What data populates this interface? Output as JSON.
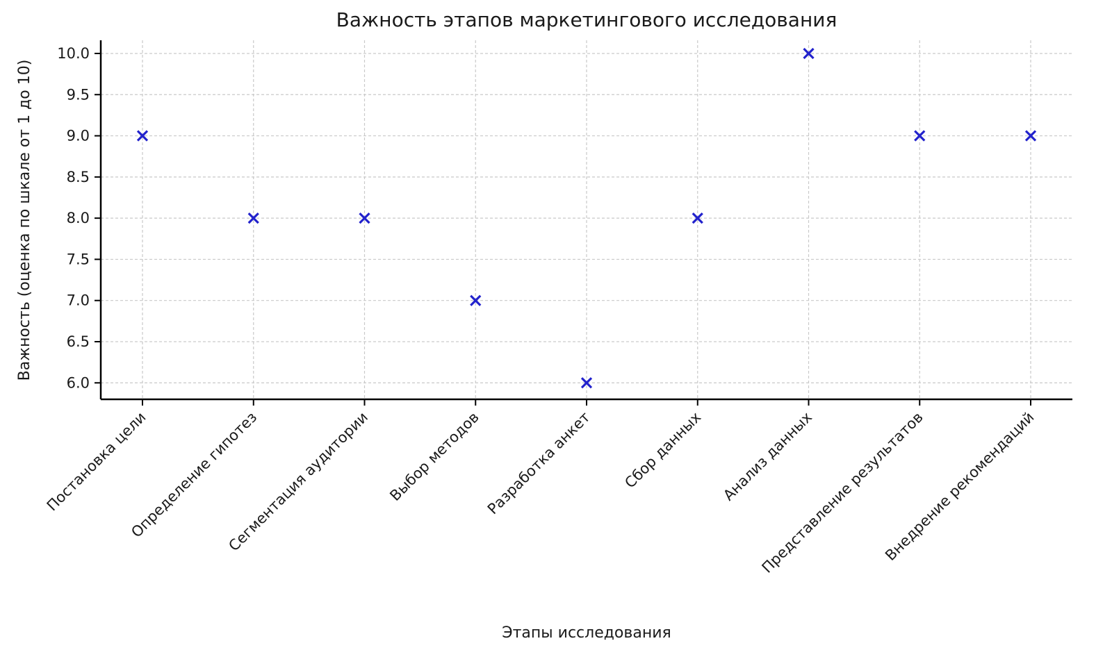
{
  "figure": {
    "background": "#ffffff"
  },
  "chart_data": {
    "type": "scatter",
    "title": "Важность этапов маркетингового исследования",
    "xlabel": "Этапы исследования",
    "ylabel": "Важность (оценка по шкале от 1 до 10)",
    "categories": [
      "Постановка цели",
      "Определение гипотез",
      "Сегментация аудитории",
      "Выбор методов",
      "Разработка анкет",
      "Сбор данных",
      "Анализ данных",
      "Представление результатов",
      "Внедрение рекомендаций"
    ],
    "values": [
      9,
      8,
      8,
      7,
      6,
      8,
      10,
      9,
      9
    ],
    "yticks": [
      6.0,
      6.5,
      7.0,
      7.5,
      8.0,
      8.5,
      9.0,
      9.5,
      10.0
    ],
    "ylim": [
      5.8,
      10.16
    ],
    "grid": true,
    "grid_style": "dashed",
    "legend": false,
    "marker": "x",
    "marker_color": "#2222cc",
    "grid_color": "#c9c9c9",
    "axis_color": "#000000",
    "text_color": "#1a1a1a"
  }
}
